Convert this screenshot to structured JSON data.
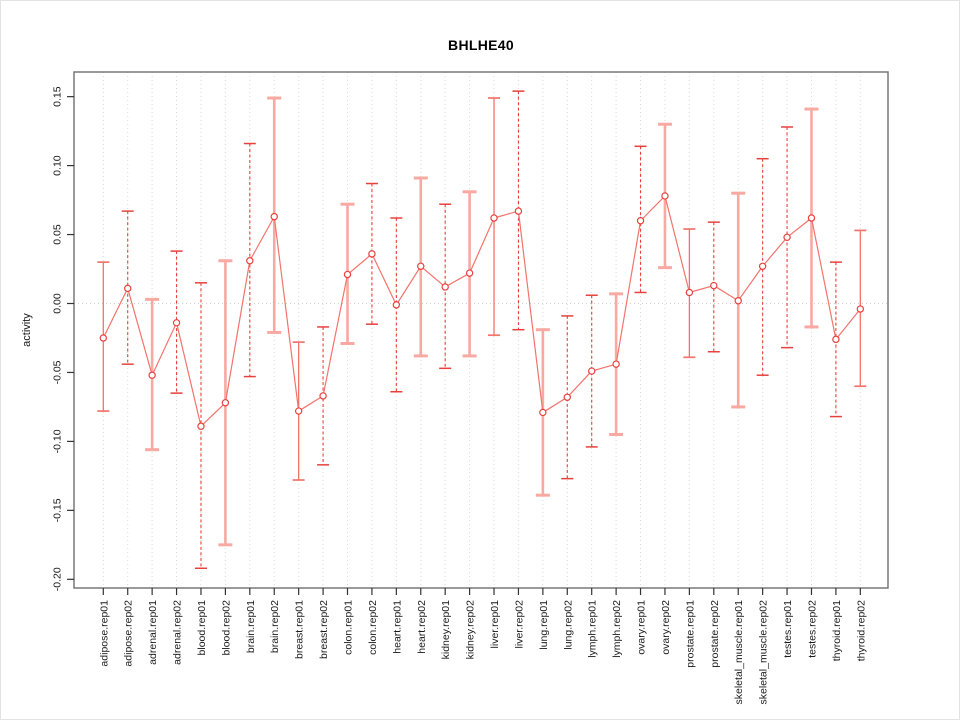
{
  "chart_data": {
    "type": "scatter",
    "subtype": "point-range (means with error bars)",
    "title": "BHLHE40",
    "xlabel": "",
    "ylabel": "activity",
    "ylim": [
      -0.205,
      0.165
    ],
    "yticks": [
      0.15,
      0.1,
      0.05,
      0.0,
      -0.05,
      -0.1,
      -0.15,
      -0.2
    ],
    "ytick_labels": [
      "0.15",
      "0.10",
      "0.05",
      "0.00",
      "-0.05",
      "-0.10",
      "-0.15",
      "-0.20"
    ],
    "grid": "dotted vertical line per category, dotted horizontal line at y=0",
    "legend_position": "none",
    "categories": [
      "adipose.rep01",
      "adipose.rep02",
      "adrenal.rep01",
      "adrenal.rep02",
      "blood.rep01",
      "blood.rep02",
      "brain.rep01",
      "brain.rep02",
      "breast.rep01",
      "breast.rep02",
      "colon.rep01",
      "colon.rep02",
      "heart.rep01",
      "heart.rep02",
      "kidney.rep01",
      "kidney.rep02",
      "liver.rep01",
      "liver.rep02",
      "lung.rep01",
      "lung.rep02",
      "lymph.rep01",
      "lymph.rep02",
      "ovary.rep01",
      "ovary.rep02",
      "prostate.rep01",
      "prostate.rep02",
      "skeletal_muscle.rep01",
      "skeletal_muscle.rep02",
      "testes.rep01",
      "testes.rep02",
      "thyroid.rep01",
      "thyroid.rep02"
    ],
    "series": [
      {
        "name": "activity",
        "points": [
          {
            "value": -0.025,
            "lo": -0.078,
            "hi": 0.03,
            "bar_style": "solid"
          },
          {
            "value": 0.011,
            "lo": -0.044,
            "hi": 0.067,
            "bar_style": "dashed"
          },
          {
            "value": -0.052,
            "lo": -0.106,
            "hi": 0.003,
            "bar_style": "thick"
          },
          {
            "value": -0.014,
            "lo": -0.065,
            "hi": 0.038,
            "bar_style": "dashed"
          },
          {
            "value": -0.089,
            "lo": -0.192,
            "hi": 0.015,
            "bar_style": "dashed"
          },
          {
            "value": -0.072,
            "lo": -0.175,
            "hi": 0.031,
            "bar_style": "thick"
          },
          {
            "value": 0.031,
            "lo": -0.053,
            "hi": 0.116,
            "bar_style": "dashed"
          },
          {
            "value": 0.063,
            "lo": -0.021,
            "hi": 0.149,
            "bar_style": "thick"
          },
          {
            "value": -0.078,
            "lo": -0.128,
            "hi": -0.028,
            "bar_style": "solid"
          },
          {
            "value": -0.067,
            "lo": -0.117,
            "hi": -0.017,
            "bar_style": "dashed"
          },
          {
            "value": 0.021,
            "lo": -0.029,
            "hi": 0.072,
            "bar_style": "thick"
          },
          {
            "value": 0.036,
            "lo": -0.015,
            "hi": 0.087,
            "bar_style": "dashed"
          },
          {
            "value": -0.001,
            "lo": -0.064,
            "hi": 0.062,
            "bar_style": "dashed"
          },
          {
            "value": 0.027,
            "lo": -0.038,
            "hi": 0.091,
            "bar_style": "thick"
          },
          {
            "value": 0.012,
            "lo": -0.047,
            "hi": 0.072,
            "bar_style": "dashed"
          },
          {
            "value": 0.022,
            "lo": -0.038,
            "hi": 0.081,
            "bar_style": "thick"
          },
          {
            "value": 0.062,
            "lo": -0.023,
            "hi": 0.149,
            "bar_style": "solid"
          },
          {
            "value": 0.067,
            "lo": -0.019,
            "hi": 0.154,
            "bar_style": "dashed"
          },
          {
            "value": -0.079,
            "lo": -0.139,
            "hi": -0.019,
            "bar_style": "thick"
          },
          {
            "value": -0.068,
            "lo": -0.127,
            "hi": -0.009,
            "bar_style": "dashed"
          },
          {
            "value": -0.049,
            "lo": -0.104,
            "hi": 0.006,
            "bar_style": "dashed"
          },
          {
            "value": -0.044,
            "lo": -0.095,
            "hi": 0.007,
            "bar_style": "thick"
          },
          {
            "value": 0.06,
            "lo": 0.008,
            "hi": 0.114,
            "bar_style": "dashed"
          },
          {
            "value": 0.078,
            "lo": 0.026,
            "hi": 0.13,
            "bar_style": "thick"
          },
          {
            "value": 0.008,
            "lo": -0.039,
            "hi": 0.054,
            "bar_style": "solid"
          },
          {
            "value": 0.013,
            "lo": -0.035,
            "hi": 0.059,
            "bar_style": "dashed"
          },
          {
            "value": 0.002,
            "lo": -0.075,
            "hi": 0.08,
            "bar_style": "thick"
          },
          {
            "value": 0.027,
            "lo": -0.052,
            "hi": 0.105,
            "bar_style": "dashed"
          },
          {
            "value": 0.048,
            "lo": -0.032,
            "hi": 0.128,
            "bar_style": "dashed"
          },
          {
            "value": 0.062,
            "lo": -0.017,
            "hi": 0.141,
            "bar_style": "thick"
          },
          {
            "value": -0.026,
            "lo": -0.082,
            "hi": 0.03,
            "bar_style": "dashed"
          },
          {
            "value": -0.004,
            "lo": -0.06,
            "hi": 0.053,
            "bar_style": "solid"
          }
        ]
      }
    ],
    "colors": {
      "point_stroke": "#e8413c",
      "connect_line": "#f2736c",
      "bar_dashed": "#e8413c",
      "bar_thick": "#f8a9a2",
      "bar_solid": "#f2736c",
      "gridline": "#d9d9d9",
      "zero_line": "#cfcfcf",
      "frame": "#6e6e6e",
      "tick": "#333333",
      "text": "#1a1a1a"
    }
  }
}
